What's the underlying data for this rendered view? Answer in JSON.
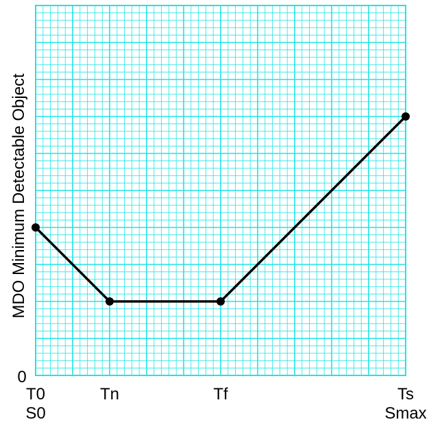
{
  "chart_data": {
    "type": "line",
    "title": "",
    "ylabel": "MDO  Minimum Detectable Object",
    "xlabel": "",
    "y_origin_label": "0",
    "x_ticks": [
      {
        "x": 0,
        "labels": [
          "T0",
          "S0"
        ]
      },
      {
        "x": 2,
        "labels": [
          "Tn"
        ]
      },
      {
        "x": 5,
        "labels": [
          "Tf"
        ]
      },
      {
        "x": 10,
        "labels": [
          "Ts",
          "Smax"
        ]
      }
    ],
    "xlim": [
      0,
      10
    ],
    "ylim": [
      0,
      10
    ],
    "grid": true,
    "series": [
      {
        "x": [
          0,
          2,
          5,
          10
        ],
        "y": [
          4,
          2,
          2,
          7
        ]
      }
    ],
    "colors": {
      "grid": "#22e3e3",
      "line": "#000000",
      "background": "#ffffff"
    }
  }
}
